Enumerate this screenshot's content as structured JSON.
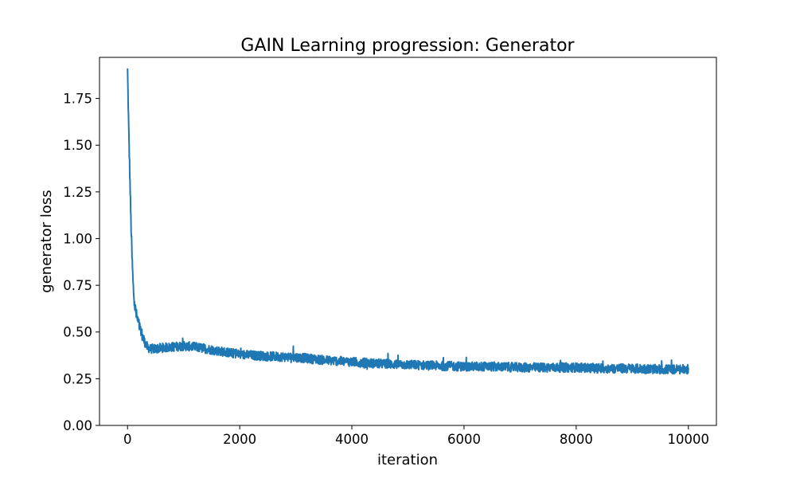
{
  "chart_data": {
    "type": "line",
    "title": "GAIN Learning progression: Generator",
    "xlabel": "iteration",
    "ylabel": "generator loss",
    "xlim": [
      -500,
      10500
    ],
    "ylim": [
      0.0,
      1.97
    ],
    "x_ticks": [
      0,
      2000,
      4000,
      6000,
      8000,
      10000
    ],
    "x_tick_labels": [
      "0",
      "2000",
      "4000",
      "6000",
      "8000",
      "10000"
    ],
    "y_ticks": [
      0.0,
      0.25,
      0.5,
      0.75,
      1.0,
      1.25,
      1.5,
      1.75
    ],
    "y_tick_labels": [
      "0.00",
      "0.25",
      "0.50",
      "0.75",
      "1.00",
      "1.25",
      "1.50",
      "1.75"
    ],
    "grid": false,
    "series": [
      {
        "color": "#1f77b4",
        "x": [
          0,
          20,
          40,
          60,
          80,
          100,
          120,
          150,
          200,
          250,
          300,
          350,
          400,
          500,
          600,
          800,
          1000,
          1200,
          1400,
          1600,
          2000,
          2500,
          3000,
          3500,
          4000,
          4500,
          5000,
          5500,
          6000,
          6500,
          7000,
          7500,
          8000,
          8500,
          9000,
          9500,
          10000
        ],
        "y": [
          1.9,
          1.6,
          1.35,
          1.1,
          0.9,
          0.75,
          0.66,
          0.6,
          0.54,
          0.49,
          0.45,
          0.42,
          0.41,
          0.41,
          0.415,
          0.42,
          0.425,
          0.42,
          0.41,
          0.4,
          0.38,
          0.37,
          0.365,
          0.35,
          0.34,
          0.33,
          0.325,
          0.32,
          0.315,
          0.315,
          0.31,
          0.31,
          0.31,
          0.305,
          0.305,
          0.3,
          0.3
        ],
        "noise_amplitude": 0.025
      }
    ]
  }
}
